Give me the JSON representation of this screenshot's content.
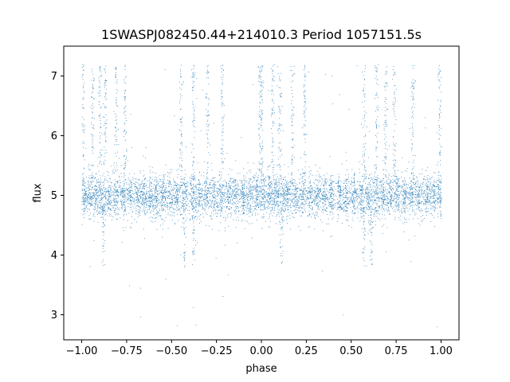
{
  "chart_data": {
    "type": "scatter",
    "title": "1SWASPJ082450.44+214010.3 Period 1057151.5s",
    "xlabel": "phase",
    "ylabel": "flux",
    "xlim": [
      -1.1,
      1.1
    ],
    "ylim": [
      2.58,
      7.5
    ],
    "xticks": [
      -1.0,
      -0.75,
      -0.5,
      -0.25,
      0.0,
      0.25,
      0.5,
      0.75,
      1.0
    ],
    "xtick_labels": [
      "−1.00",
      "−0.75",
      "−0.50",
      "−0.25",
      "0.00",
      "0.25",
      "0.50",
      "0.75",
      "1.00"
    ],
    "yticks": [
      3,
      4,
      5,
      6,
      7
    ],
    "ytick_labels": [
      "3",
      "4",
      "5",
      "6",
      "7"
    ],
    "grid": false,
    "legend": "none",
    "point_color": "#1f77b4",
    "baseline_flux": 5.0,
    "phase_range": [
      -1.0,
      1.0
    ],
    "flux_range": [
      2.8,
      7.25
    ],
    "clusters": [
      -0.99,
      -0.955,
      -0.92,
      -0.885,
      -0.85,
      -0.81,
      -0.77,
      -0.73,
      -0.69,
      -0.655,
      -0.62,
      -0.585,
      -0.55,
      -0.51,
      -0.47,
      -0.43,
      -0.385,
      -0.345,
      -0.305,
      -0.265,
      -0.225,
      -0.185,
      -0.145,
      -0.105,
      -0.065,
      -0.025,
      0.01,
      0.045,
      0.08,
      0.115,
      0.15,
      0.19,
      0.23,
      0.27,
      0.31,
      0.35,
      0.39,
      0.435,
      0.475,
      0.515,
      0.555,
      0.595,
      0.635,
      0.675,
      0.715,
      0.755,
      0.795,
      0.835,
      0.875,
      0.915,
      0.955,
      0.99
    ],
    "bright_columns": [
      -0.995,
      -0.94,
      -0.9,
      -0.87,
      -0.81,
      -0.76,
      -0.45,
      -0.38,
      -0.3,
      -0.22,
      -0.01,
      0.0,
      0.06,
      0.1,
      0.17,
      0.24,
      0.57,
      0.64,
      0.69,
      0.74,
      0.84,
      0.99
    ],
    "dip_columns": [
      -0.88,
      -0.43,
      -0.38,
      0.11,
      0.57,
      0.61
    ]
  }
}
